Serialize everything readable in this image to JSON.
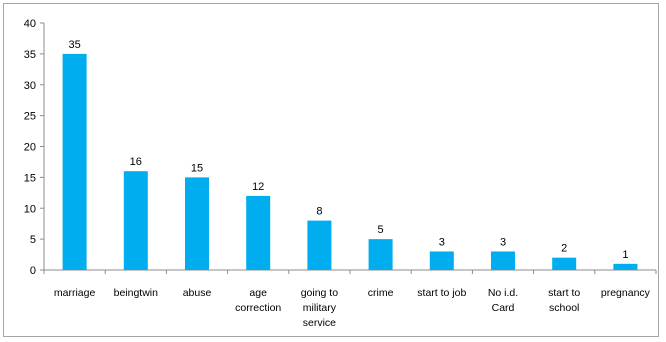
{
  "chart_data": {
    "type": "bar",
    "categories": [
      [
        "marriage"
      ],
      [
        "beingtwin"
      ],
      [
        "abuse"
      ],
      [
        "age",
        "correction"
      ],
      [
        "going to",
        "military",
        "service"
      ],
      [
        "crime"
      ],
      [
        "start to job"
      ],
      [
        "No i.d.",
        "Card"
      ],
      [
        "start to",
        "school"
      ],
      [
        "pregnancy"
      ]
    ],
    "values": [
      35,
      16,
      15,
      12,
      8,
      5,
      3,
      3,
      2,
      1
    ],
    "ylim": [
      0,
      40
    ],
    "yticks": [
      0,
      5,
      10,
      15,
      20,
      25,
      30,
      35,
      40
    ],
    "grid": false,
    "legend": "none",
    "bar_color": "#00aeef",
    "axis_color": "#8c8c8c",
    "data_labels": true
  }
}
